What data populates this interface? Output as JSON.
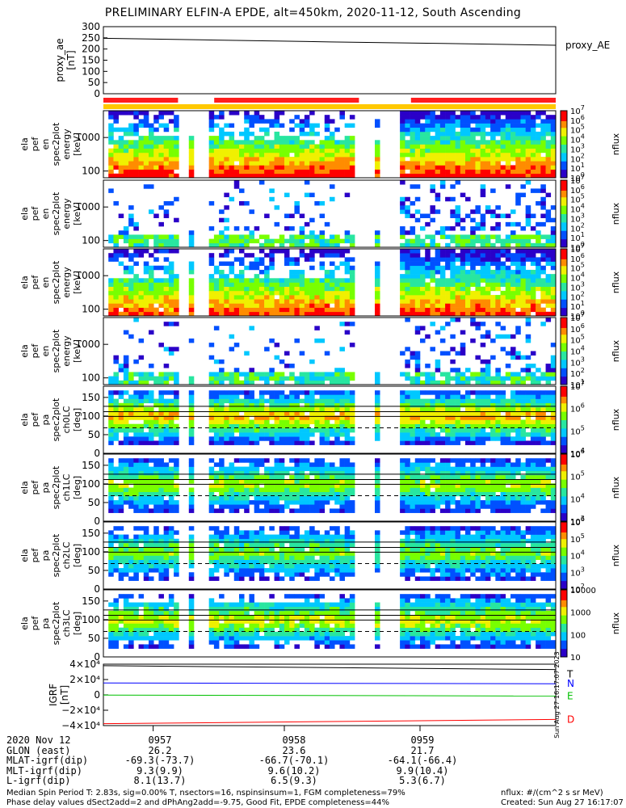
{
  "title": "PRELIMINARY ELFIN-A EPDE, alt=450km, 2020-11-12, South Ascending",
  "chart_data": [
    {
      "type": "line",
      "panel": "proxy_ae",
      "ylabel_lines": [
        "proxy_ae",
        "[nT]"
      ],
      "yticks": [
        "0",
        "50",
        "100",
        "150",
        "200",
        "250",
        "300"
      ],
      "ylim": [
        0,
        300
      ],
      "legend": "proxy_AE",
      "x": [
        0,
        0.25,
        0.5,
        0.75,
        1
      ],
      "values": [
        248,
        240,
        232,
        225,
        217
      ]
    },
    {
      "type": "heatmap",
      "panel": "spec-1",
      "ylabel_lines": [
        "ela",
        "pef",
        "en",
        "spec2plot",
        "energy",
        "[keV]"
      ],
      "yticks": [
        "100",
        "1000"
      ],
      "ylog": true,
      "ylim": [
        63,
        6300
      ],
      "cbar_label": "nflux",
      "cbar_exps": [
        "10",
        "10",
        "10",
        "10",
        "10",
        "10",
        "10",
        "10"
      ],
      "cbar_pows": [
        "0",
        "1",
        "2",
        "3",
        "4",
        "5",
        "6",
        "7"
      ],
      "mode": "spec",
      "density": [
        0.55,
        0.5,
        0.45,
        0.9
      ],
      "peak": 0.9
    },
    {
      "type": "heatmap",
      "panel": "spec-2",
      "ylabel_lines": [
        "ela",
        "pef",
        "en",
        "spec2plot",
        "energy",
        "[keV]"
      ],
      "yticks": [
        "100",
        "1000"
      ],
      "ylog": true,
      "ylim": [
        63,
        6300
      ],
      "cbar_label": "nflux",
      "cbar_exps": [
        "10",
        "10",
        "10",
        "10",
        "10",
        "10",
        "10",
        "10"
      ],
      "cbar_pows": [
        "0",
        "1",
        "2",
        "3",
        "4",
        "5",
        "6",
        "7"
      ],
      "mode": "sparse",
      "density": [
        0.25,
        0.2,
        0.2,
        0.45
      ],
      "peak": 0.55
    },
    {
      "type": "heatmap",
      "panel": "spec-3",
      "ylabel_lines": [
        "ela",
        "pef",
        "en",
        "spec2plot",
        "energy",
        "[keV]"
      ],
      "yticks": [
        "100",
        "1000"
      ],
      "ylog": true,
      "ylim": [
        63,
        6300
      ],
      "cbar_label": "nflux",
      "cbar_exps": [
        "10",
        "10",
        "10",
        "10",
        "10",
        "10",
        "10",
        "10"
      ],
      "cbar_pows": [
        "0",
        "1",
        "2",
        "3",
        "4",
        "5",
        "6",
        "7"
      ],
      "mode": "spec",
      "density": [
        0.5,
        0.5,
        0.45,
        0.9
      ],
      "peak": 0.85
    },
    {
      "type": "heatmap",
      "panel": "spec-4",
      "ylabel_lines": [
        "ela",
        "pef",
        "en",
        "spec2plot",
        "energy",
        "[keV]"
      ],
      "yticks": [
        "100",
        "1000"
      ],
      "ylog": true,
      "ylim": [
        63,
        6300
      ],
      "cbar_label": "nflux",
      "cbar_exps": [
        "10",
        "10",
        "10",
        "10",
        "10",
        "10",
        "10"
      ],
      "cbar_pows": [
        "1",
        "2",
        "3",
        "4",
        "5",
        "6",
        "7"
      ],
      "mode": "sparse",
      "density": [
        0.2,
        0.15,
        0.15,
        0.4
      ],
      "peak": 0.5
    },
    {
      "type": "heatmap",
      "panel": "pa-0",
      "ylabel_lines": [
        "ela",
        "pef",
        "pa",
        "spec2plot",
        "ch0LC",
        "[deg]"
      ],
      "yticks": [
        "0",
        "50",
        "100",
        "150"
      ],
      "ylim": [
        0,
        180
      ],
      "cbar_label": "nflux",
      "cbar_exps": [
        "10",
        "10",
        "10",
        "10"
      ],
      "cbar_pows": [
        "4",
        "5",
        "6",
        "7"
      ],
      "mode": "pa",
      "density": [
        0.85,
        0.8,
        0.8,
        0.9
      ],
      "peak": 0.7
    },
    {
      "type": "heatmap",
      "panel": "pa-1",
      "ylabel_lines": [
        "ela",
        "pef",
        "pa",
        "spec2plot",
        "ch1LC",
        "[deg]"
      ],
      "yticks": [
        "0",
        "50",
        "100",
        "150"
      ],
      "ylim": [
        0,
        180
      ],
      "cbar_label": "nflux",
      "cbar_exps": [
        "10",
        "10",
        "10",
        "10"
      ],
      "cbar_pows": [
        "3",
        "4",
        "5",
        "6"
      ],
      "mode": "pa",
      "density": [
        0.8,
        0.75,
        0.75,
        0.9
      ],
      "peak": 0.55
    },
    {
      "type": "heatmap",
      "panel": "pa-2",
      "ylabel_lines": [
        "ela",
        "pef",
        "pa",
        "spec2plot",
        "ch2LC",
        "[deg]"
      ],
      "yticks": [
        "0",
        "50",
        "100",
        "150"
      ],
      "ylim": [
        0,
        180
      ],
      "cbar_label": "nflux",
      "cbar_exps": [
        "10",
        "10",
        "10",
        "10",
        "10"
      ],
      "cbar_pows": [
        "2",
        "3",
        "4",
        "5",
        "6"
      ],
      "mode": "pa",
      "density": [
        0.55,
        0.5,
        0.5,
        0.85
      ],
      "peak": 0.5
    },
    {
      "type": "heatmap",
      "panel": "pa-3",
      "ylabel_lines": [
        "ela",
        "pef",
        "pa",
        "spec2plot",
        "ch3LC",
        "[deg]"
      ],
      "yticks": [
        "0",
        "50",
        "100",
        "150"
      ],
      "ylim": [
        0,
        180
      ],
      "cbar_label": "nflux",
      "cbar_ticks": [
        "10",
        "100",
        "1000",
        "10000"
      ],
      "mode": "pa",
      "density": [
        0.5,
        0.45,
        0.45,
        0.85
      ],
      "peak": 0.6
    },
    {
      "type": "line",
      "panel": "igrf",
      "ylabel_lines": [
        "IGRF",
        "[nT]"
      ],
      "yticks": [
        "−4×10⁴",
        "−2×10⁴",
        "0",
        "2×10⁴",
        "4×10⁴"
      ],
      "ylim": [
        -40000,
        40000
      ],
      "side_text": "Sun Aug 27 16:17:07 2023",
      "series": [
        {
          "name": "T",
          "color": "#000000",
          "values": [
            38000,
            33000
          ]
        },
        {
          "name": "N",
          "color": "#0000ff",
          "values": [
            15500,
            14500
          ]
        },
        {
          "name": "E",
          "color": "#00c000",
          "values": [
            -300,
            -1500
          ]
        },
        {
          "name": "D",
          "color": "#ff0000",
          "values": [
            -37500,
            -32000
          ]
        }
      ]
    }
  ],
  "time_axis": {
    "labels": [
      "0957",
      "0958",
      "0959"
    ]
  },
  "ephemeris": {
    "rows": [
      {
        "label": "2020 Nov 12",
        "v": [
          "0957",
          "0958",
          "0959"
        ]
      },
      {
        "label": "GLON (east)",
        "v": [
          "26.2",
          "23.6",
          "21.7"
        ]
      },
      {
        "label": "MLAT-igrf(dip)",
        "v": [
          "-69.3(-73.7)",
          "-66.7(-70.1)",
          "-64.1(-66.4)"
        ]
      },
      {
        "label": "MLT-igrf(dip)",
        "v": [
          "9.3(9.9)",
          "9.6(10.2)",
          "9.9(10.4)"
        ]
      },
      {
        "label": "L-igrf(dip)",
        "v": [
          "8.1(13.7)",
          "6.5(9.3)",
          "5.3(6.7)"
        ]
      }
    ]
  },
  "footer": {
    "left1": "Median Spin Period T: 2.83s, sig=0.00% T, nsectors=16, nspinsinsum=1, FGM completeness=79%",
    "left2": "Phase delay values dSect2add=2 and dPhAng2add=-9.75, Good Fit, EPDE completeness=44%",
    "right1": "nflux: #/(cm^2 s sr MeV)",
    "right2": "Created: Sun Aug 27 16:17:07 2023"
  }
}
